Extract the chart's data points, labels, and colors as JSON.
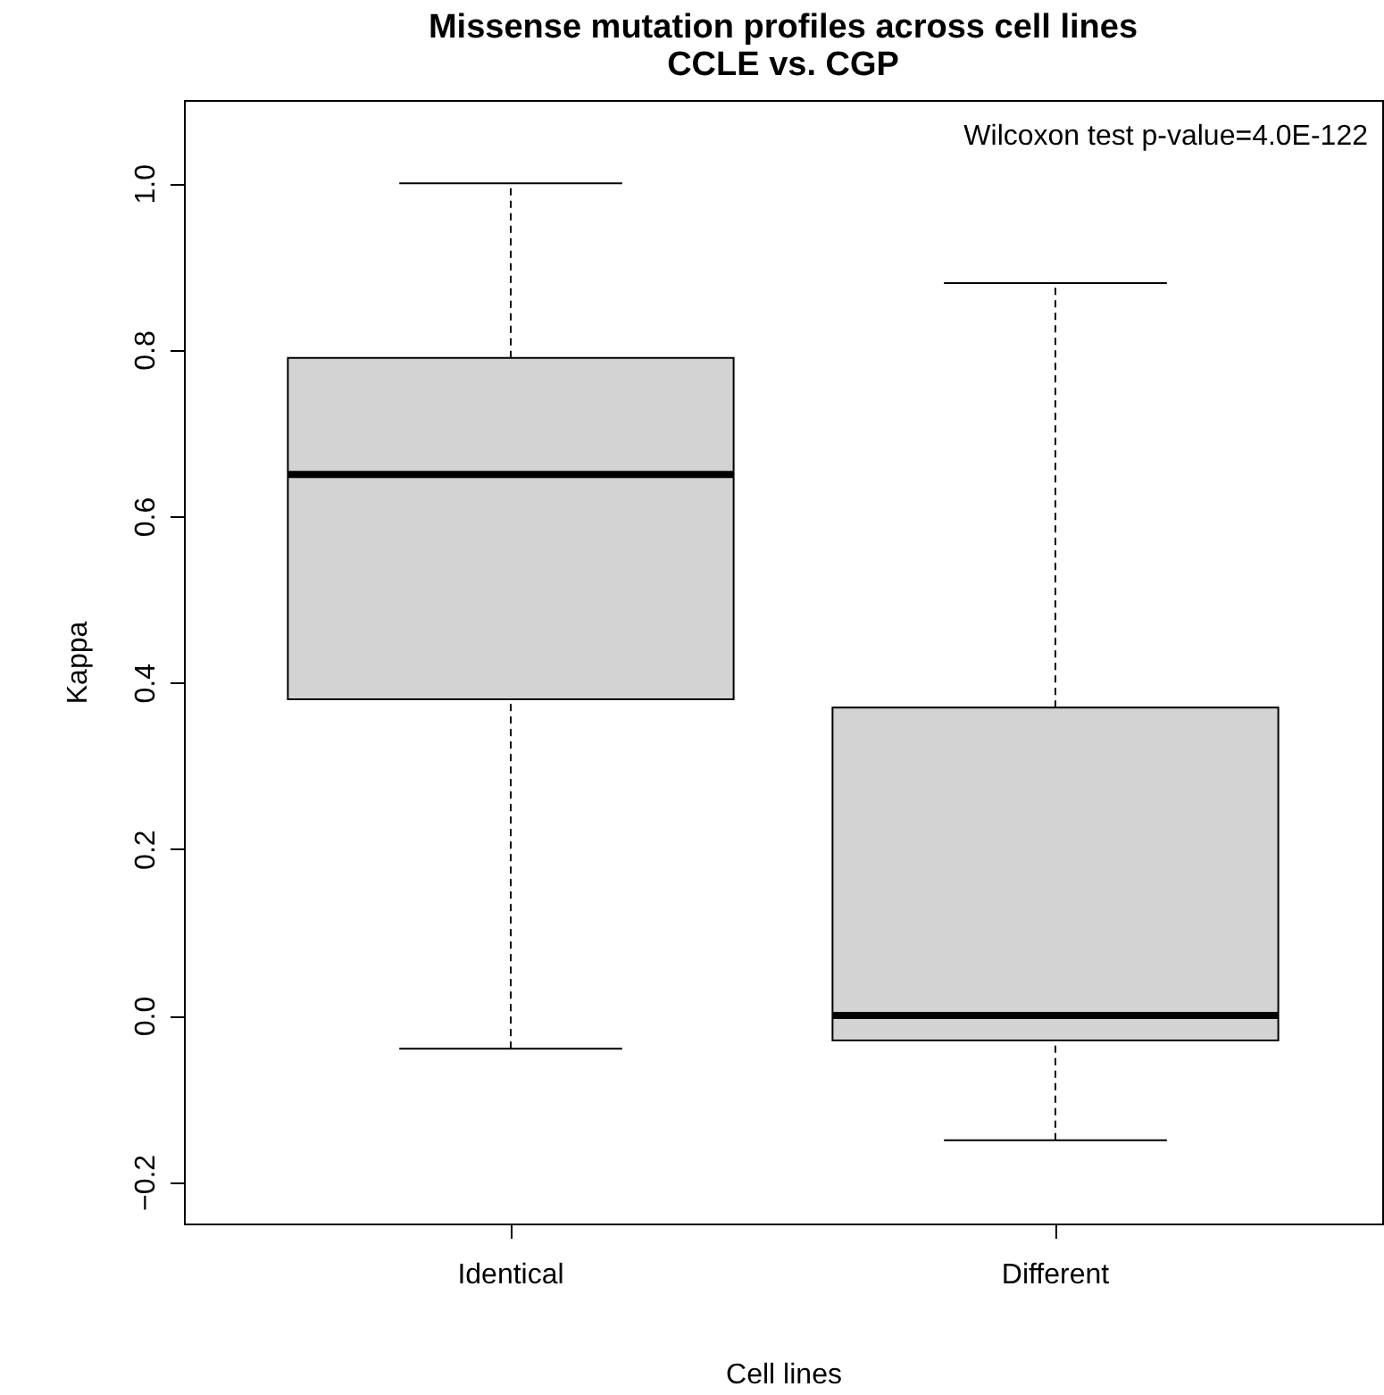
{
  "chart_data": {
    "type": "box",
    "title": "Missense mutation profiles across cell lines\nCCLE vs. CGP",
    "xlabel": "Cell lines",
    "ylabel": "Kappa",
    "categories": [
      "Identical",
      "Different"
    ],
    "series": [
      {
        "color": "#d3d3d3",
        "boxes": [
          {
            "low": -0.04,
            "q1": 0.38,
            "median": 0.65,
            "q3": 0.79,
            "high": 1.0
          },
          {
            "low": -0.15,
            "q1": -0.03,
            "median": 0.0,
            "q3": 0.37,
            "high": 0.88
          }
        ]
      }
    ],
    "ylim": [
      -0.25,
      1.1
    ],
    "yticks": [
      {
        "value": -0.2,
        "label": "−0.2"
      },
      {
        "value": 0,
        "label": "0.0"
      },
      0.2,
      0.4,
      0.6,
      0.8,
      {
        "value": 1,
        "label": "1.0"
      }
    ],
    "annotations": [
      "Wilcoxon test p-value=4.0E-122"
    ],
    "line_style": "dashed"
  }
}
